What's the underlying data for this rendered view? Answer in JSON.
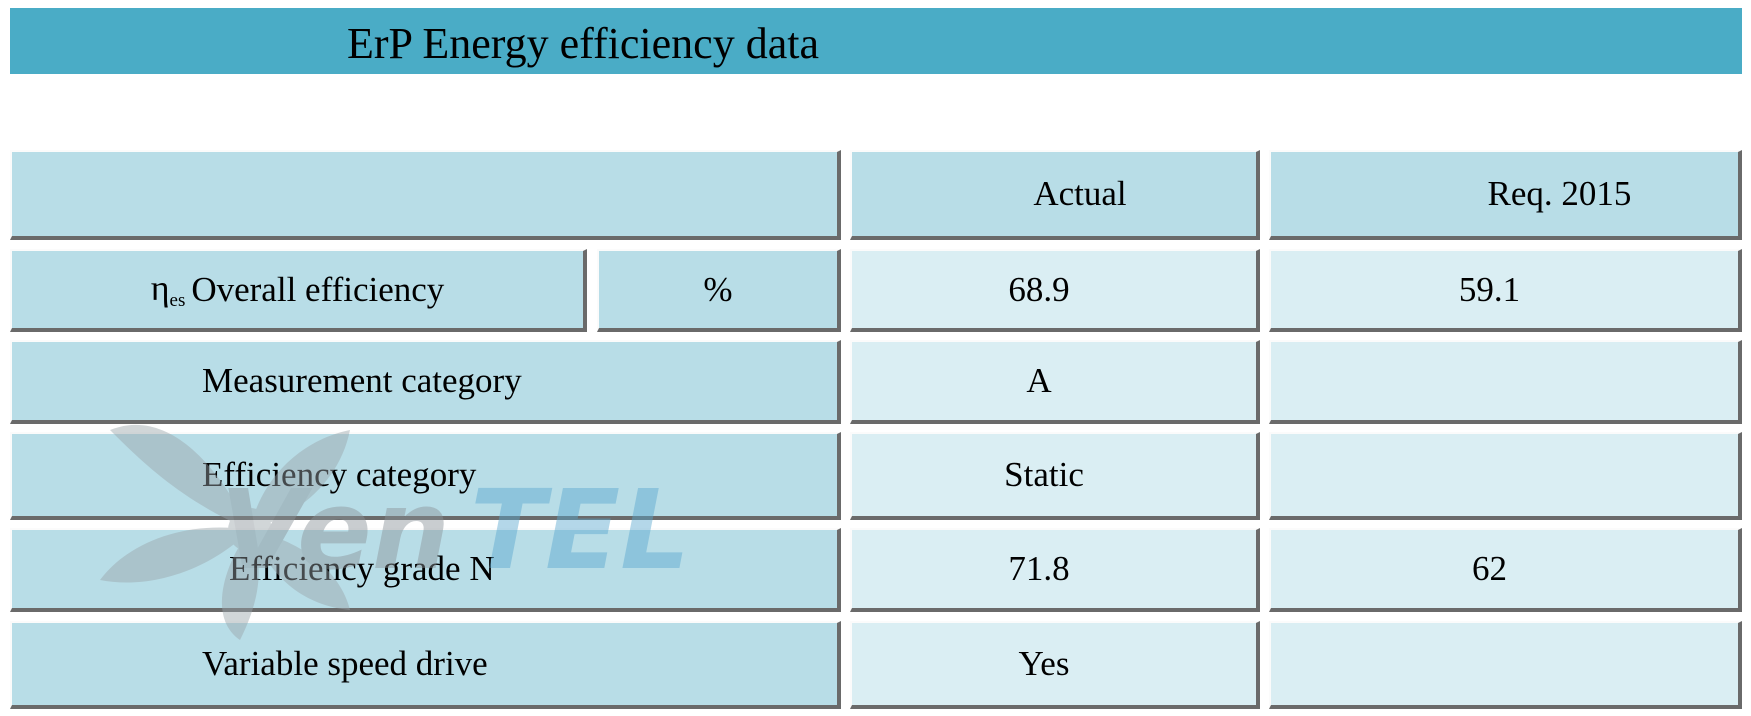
{
  "title": "ErP Energy efficiency data",
  "header": {
    "actual": "Actual",
    "req": "Req. 2015"
  },
  "rows": [
    {
      "symbol": "η",
      "symbol_sub": "es",
      "label": "Overall efficiency",
      "unit": "%",
      "actual": "68.9",
      "req": "59.1"
    },
    {
      "label": "Measurement category",
      "actual": "A",
      "req": ""
    },
    {
      "label": "Efficiency category",
      "actual": "Static",
      "req": ""
    },
    {
      "label": "Efficiency grade N",
      "actual": "71.8",
      "req": "62"
    },
    {
      "label": "Variable speed drive",
      "actual": "Yes",
      "req": ""
    }
  ],
  "watermark": {
    "text": "VentEL"
  },
  "colors": {
    "title_bar": "#4aacc6",
    "label_cell": "#b8dde7",
    "value_cell": "#daeef3"
  }
}
